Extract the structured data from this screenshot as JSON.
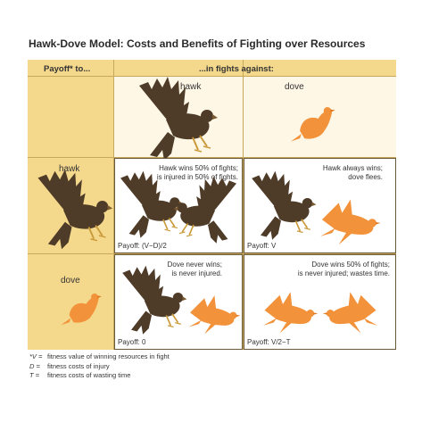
{
  "title": "Hawk-Dove Model: Costs and Benefits of Fighting over Resources",
  "header": {
    "payoff_to": "Payoff* to...",
    "against": "...in fights against:"
  },
  "columns": [
    "hawk",
    "dove"
  ],
  "rows": [
    "hawk",
    "dove"
  ],
  "cells": {
    "hawk_hawk": {
      "desc_line1": "Hawk wins 50% of fights;",
      "desc_line2": "is injured in 50% of fights.",
      "payoff": "Payoff: (V−D)/2"
    },
    "hawk_dove": {
      "desc_line1": "Hawk always wins;",
      "desc_line2": "dove flees.",
      "payoff": "Payoff: V"
    },
    "dove_hawk": {
      "desc_line1": "Dove never wins;",
      "desc_line2": "is never injured.",
      "payoff": "Payoff: 0"
    },
    "dove_dove": {
      "desc_line1": "Dove wins 50% of fights;",
      "desc_line2": "is never injured; wastes time.",
      "payoff": "Payoff: V/2−T"
    }
  },
  "footnotes": [
    {
      "symbol": "*V =",
      "text": "fitness value of winning resources in fight"
    },
    {
      "symbol": "D =",
      "text": "fitness costs of injury"
    },
    {
      "symbol": "T =",
      "text": "fitness costs of wasting time"
    }
  ],
  "colors": {
    "hawk": "#4e3b28",
    "dove": "#f2923a",
    "header_bg": "#f4d88c",
    "cell_bg": "#ffffff"
  },
  "icons": [
    "hawk-icon",
    "dove-icon"
  ]
}
